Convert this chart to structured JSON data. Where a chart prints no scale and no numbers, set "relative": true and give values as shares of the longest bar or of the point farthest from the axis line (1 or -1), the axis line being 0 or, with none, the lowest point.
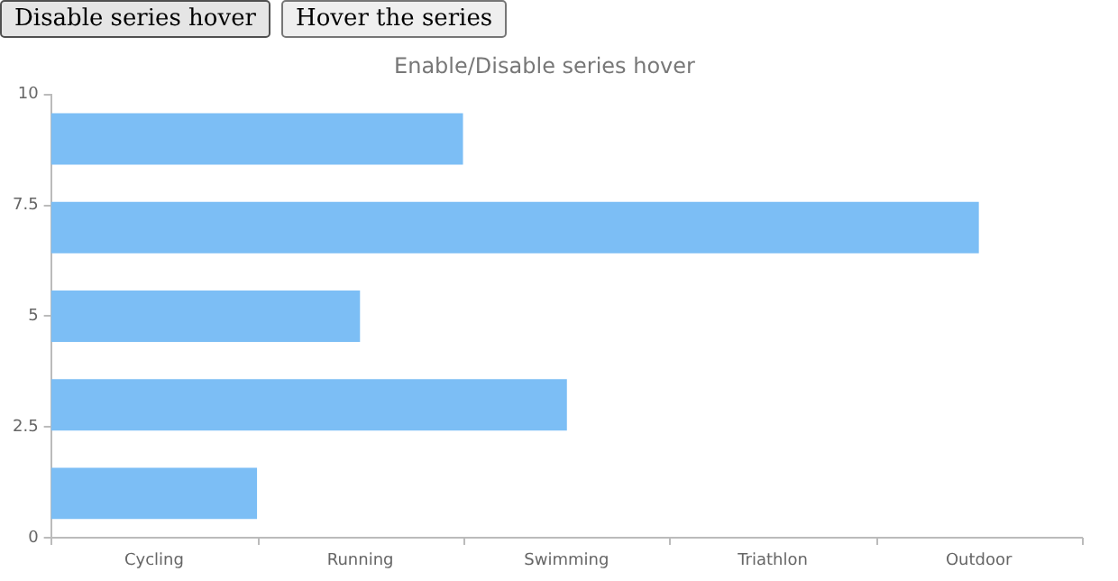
{
  "chart_data": {
    "type": "bar",
    "orientation": "horizontal",
    "relative": true,
    "title": "Enable/Disable series hover",
    "annotations": [
      "Disable series hover",
      "Hover the series",
      "Cycling",
      "Running",
      "Swimming",
      "Triathlon",
      "Outdoor"
    ],
    "x": [
      1,
      3,
      5,
      7,
      9
    ],
    "values": [
      0.222,
      0.556,
      0.333,
      1,
      0.444
    ],
    "color": "#7cbef5",
    "ylim": [
      0,
      10
    ],
    "yticks": [
      0,
      2.5,
      5,
      7.5,
      10
    ]
  }
}
